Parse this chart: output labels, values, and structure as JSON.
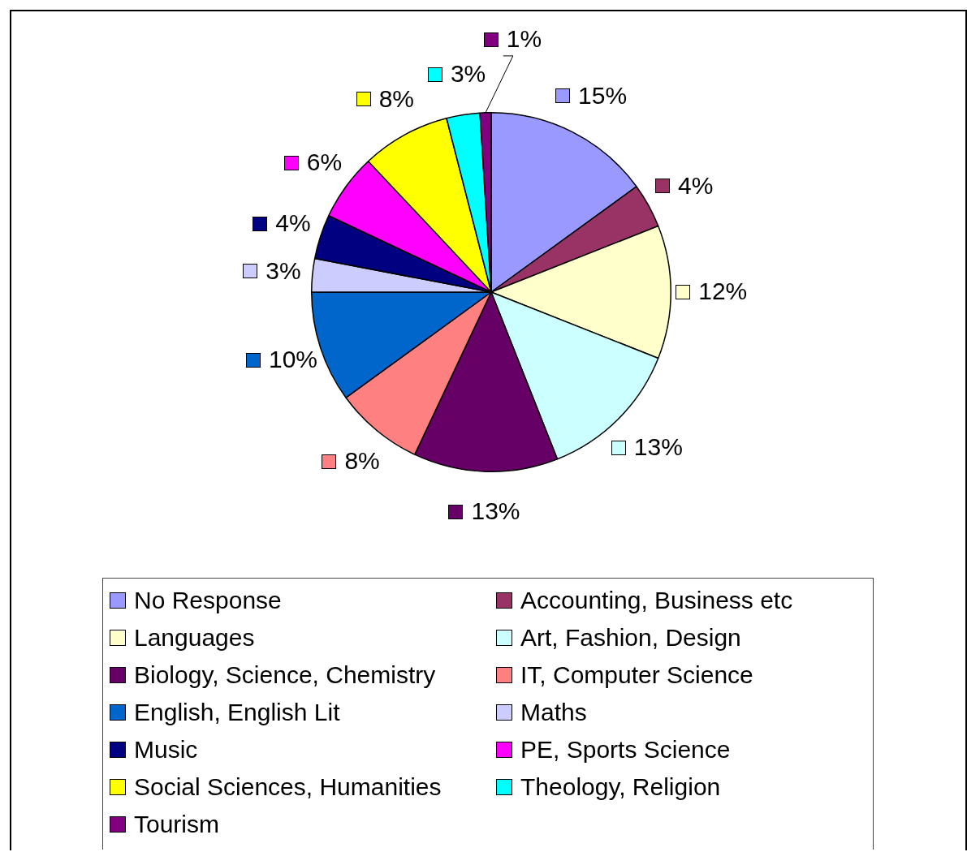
{
  "chart_data": {
    "type": "pie",
    "categories": [
      "No Response",
      "Accounting, Business etc",
      "Languages",
      "Art, Fashion, Design",
      "Biology, Science, Chemistry",
      "IT, Computer Science",
      "English, English Lit",
      "Maths",
      "Music",
      "PE, Sports Science",
      "Social Sciences, Humanities",
      "Theology, Religion",
      "Tourism"
    ],
    "values": [
      15,
      4,
      12,
      13,
      13,
      8,
      10,
      3,
      4,
      6,
      8,
      3,
      1
    ],
    "value_labels": [
      "15%",
      "4%",
      "12%",
      "13%",
      "13%",
      "8%",
      "10%",
      "3%",
      "4%",
      "6%",
      "8%",
      "3%",
      "1%"
    ],
    "colors": [
      "#9999ff",
      "#993366",
      "#ffffcc",
      "#ccffff",
      "#660066",
      "#ff8080",
      "#0066cc",
      "#ccccff",
      "#000080",
      "#ff00ff",
      "#ffff00",
      "#00ffff",
      "#800080"
    ],
    "legend": "bottom"
  }
}
